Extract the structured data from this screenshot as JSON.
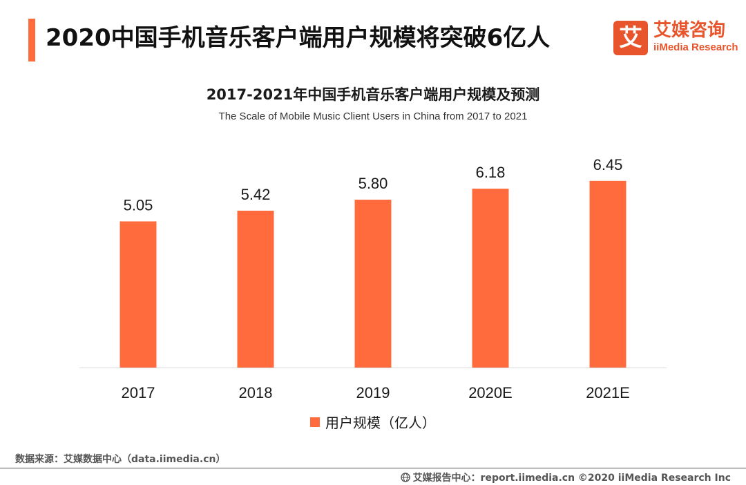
{
  "header": {
    "title": "2020中国手机音乐客户端用户规模将突破6亿人"
  },
  "logo": {
    "mark": "艾",
    "cn": "艾媒咨询",
    "en": "iiMedia Research"
  },
  "colors": {
    "accent": "#ff6b3d",
    "logo": "#e8542b",
    "axis": "#d9d9d9"
  },
  "chart_data": {
    "type": "bar",
    "title": "2017-2021年中国手机音乐客户端用户规模及预测",
    "subtitle": "The Scale of Mobile Music Client Users in China from 2017 to 2021",
    "categories": [
      "2017",
      "2018",
      "2019",
      "2020E",
      "2021E"
    ],
    "series": [
      {
        "name": "用户规模（亿人）",
        "values": [
          5.05,
          5.42,
          5.8,
          6.18,
          6.45
        ],
        "labels": [
          "5.05",
          "5.42",
          "5.80",
          "6.18",
          "6.45"
        ]
      }
    ],
    "ylim": [
      0,
      12.7
    ],
    "grid": false,
    "legend": "bottom-center"
  },
  "footer": {
    "source": "数据来源：艾媒数据中心（data.iimedia.cn）",
    "credit": "艾媒报告中心：report.iimedia.cn ©2020  iiMedia Research  Inc",
    "credit_icon": "globe-icon"
  }
}
